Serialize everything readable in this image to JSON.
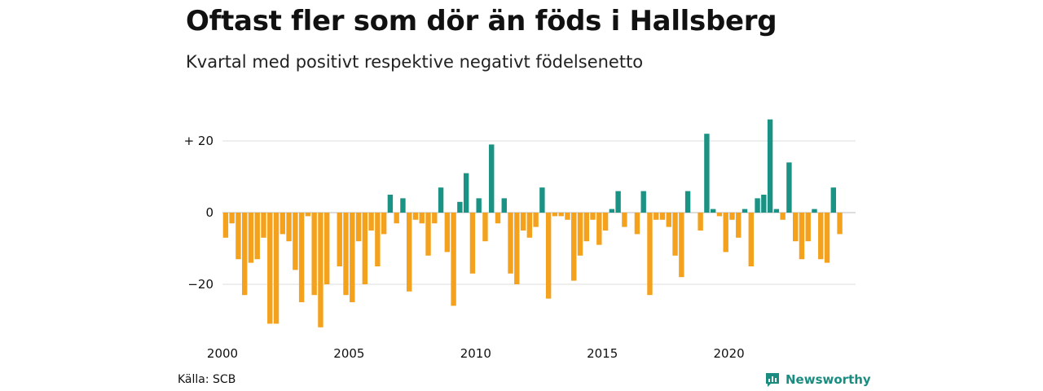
{
  "header": {
    "title": "Oftast fler som dör än föds i Hallsberg",
    "subtitle": "Kvartal med positivt respektive negativt födelsenetto"
  },
  "footer": {
    "source": "Källa: SCB",
    "brand": "Newsworthy"
  },
  "colors": {
    "positive": "#1a9384",
    "negative": "#f4a21d",
    "gridline": "#dddddd",
    "brand": "#1a8c80"
  },
  "chart_data": {
    "type": "bar",
    "title": "Oftast fler som dör än föds i Hallsberg",
    "subtitle": "Kvartal med positivt respektive negativt födelsenetto",
    "xlabel": "",
    "ylabel": "",
    "x_start_year": 2000,
    "x_end_year": 2025,
    "periods_per_year": 4,
    "xticks": [
      {
        "year": 2000,
        "label": "2000"
      },
      {
        "year": 2005,
        "label": "2005"
      },
      {
        "year": 2010,
        "label": "2010"
      },
      {
        "year": 2015,
        "label": "2015"
      },
      {
        "year": 2020,
        "label": "2020"
      }
    ],
    "yticks": [
      {
        "value": 20,
        "label": "+ 20"
      },
      {
        "value": 0,
        "label": "0"
      },
      {
        "value": -20,
        "label": "−20"
      }
    ],
    "ylim": [
      -33,
      28
    ],
    "grid": true,
    "categories": [
      "2000 K1",
      "2000 K2",
      "2000 K3",
      "2000 K4",
      "2001 K1",
      "2001 K2",
      "2001 K3",
      "2001 K4",
      "2002 K1",
      "2002 K2",
      "2002 K3",
      "2002 K4",
      "2003 K1",
      "2003 K2",
      "2003 K3",
      "2003 K4",
      "2004 K1",
      "2004 K2",
      "2004 K3",
      "2004 K4",
      "2005 K1",
      "2005 K2",
      "2005 K3",
      "2005 K4",
      "2006 K1",
      "2006 K2",
      "2006 K3",
      "2006 K4",
      "2007 K1",
      "2007 K2",
      "2007 K3",
      "2007 K4",
      "2008 K1",
      "2008 K2",
      "2008 K3",
      "2008 K4",
      "2009 K1",
      "2009 K2",
      "2009 K3",
      "2009 K4",
      "2010 K1",
      "2010 K2",
      "2010 K3",
      "2010 K4",
      "2011 K1",
      "2011 K2",
      "2011 K3",
      "2011 K4",
      "2012 K1",
      "2012 K2",
      "2012 K3",
      "2012 K4",
      "2013 K1",
      "2013 K2",
      "2013 K3",
      "2013 K4",
      "2014 K1",
      "2014 K2",
      "2014 K3",
      "2014 K4",
      "2015 K1",
      "2015 K2",
      "2015 K3",
      "2015 K4",
      "2016 K1",
      "2016 K2",
      "2016 K3",
      "2016 K4",
      "2017 K1",
      "2017 K2",
      "2017 K3",
      "2017 K4",
      "2018 K1",
      "2018 K2",
      "2018 K3",
      "2018 K4",
      "2019 K1",
      "2019 K2",
      "2019 K3",
      "2019 K4",
      "2020 K1",
      "2020 K2",
      "2020 K3",
      "2020 K4",
      "2021 K1",
      "2021 K2",
      "2021 K3",
      "2021 K4",
      "2022 K1",
      "2022 K2",
      "2022 K3",
      "2022 K4",
      "2023 K1",
      "2023 K2",
      "2023 K3",
      "2023 K4",
      "2024 K1",
      "2024 K2"
    ],
    "values": [
      -7,
      -3,
      -13,
      -23,
      -14,
      -13,
      -7,
      -31,
      -31,
      -6,
      -8,
      -16,
      -25,
      -1,
      -23,
      -32,
      -20,
      0,
      -15,
      -23,
      -25,
      -8,
      -20,
      -5,
      -15,
      -6,
      5,
      -3,
      4,
      -22,
      -2,
      -3,
      -12,
      -3,
      7,
      -11,
      -26,
      3,
      11,
      -17,
      4,
      -8,
      19,
      -3,
      4,
      -17,
      -20,
      -5,
      -7,
      -4,
      7,
      -24,
      -1,
      -1,
      -2,
      -19,
      -12,
      -8,
      -2,
      -9,
      -5,
      1,
      6,
      -4,
      0,
      -6,
      6,
      -23,
      -2,
      -2,
      -4,
      -12,
      -18,
      6,
      0,
      -5,
      22,
      1,
      -1,
      -11,
      -2,
      -7,
      1,
      -15,
      4,
      5,
      26,
      1,
      -2,
      14,
      -8,
      -13,
      -8,
      1,
      -13,
      -14,
      7,
      -6
    ]
  }
}
